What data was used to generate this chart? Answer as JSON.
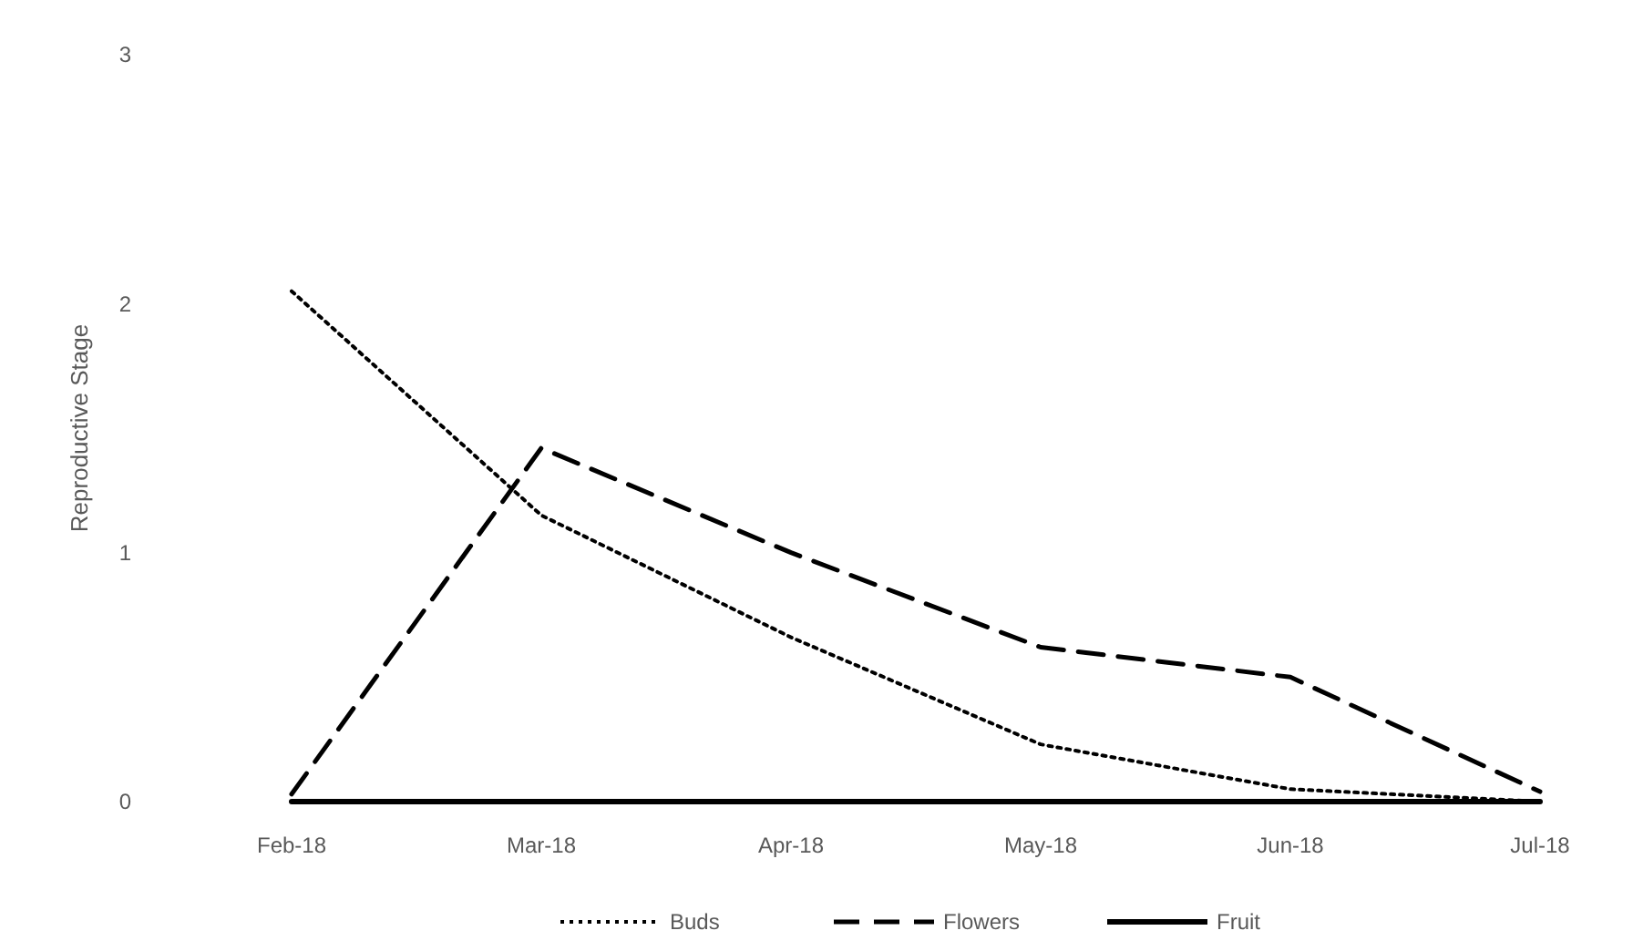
{
  "chart_data": {
    "type": "line",
    "ylabel": "Reproductive Stage",
    "categories": [
      "Feb-18",
      "Mar-18",
      "Apr-18",
      "May-18",
      "Jun-18",
      "Jul-18"
    ],
    "ylim": [
      0,
      3
    ],
    "yticks": [
      0,
      1,
      2,
      3
    ],
    "grid": false,
    "legend": "bottom",
    "series": [
      {
        "name": "Buds",
        "color": "#000000",
        "line_style": "dotted",
        "values": [
          2.05,
          1.15,
          0.66,
          0.23,
          0.05,
          0
        ]
      },
      {
        "name": "Flowers",
        "color": "#000000",
        "line_style": "dashed",
        "values": [
          0.03,
          1.42,
          1.0,
          0.62,
          0.5,
          0.04
        ]
      },
      {
        "name": "Fruit",
        "color": "#000000",
        "line_style": "solid",
        "values": [
          0,
          0,
          0,
          0,
          0,
          0
        ]
      }
    ]
  }
}
